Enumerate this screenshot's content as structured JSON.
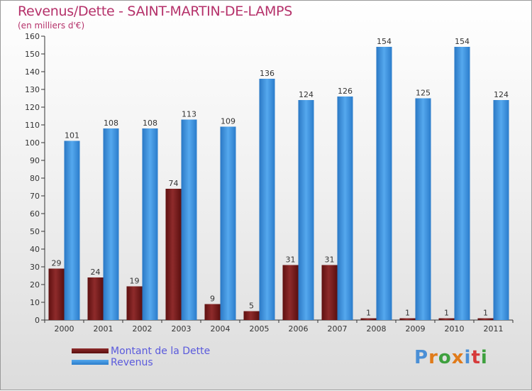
{
  "header": {
    "title": "Revenus/Dette - SAINT-MARTIN-DE-LAMPS",
    "subtitle": "(en milliers d'€)"
  },
  "legend": {
    "dette_label": "Montant de la Dette",
    "revenus_label": "Revenus"
  },
  "logo": {
    "text": "Proxiti"
  },
  "colors": {
    "dette": "#7a1a1a",
    "revenus": "#3a8fdc",
    "title": "#b5316a"
  },
  "chart_data": {
    "type": "bar",
    "title": "Revenus/Dette - SAINT-MARTIN-DE-LAMPS",
    "ylabel": "(en milliers d'€)",
    "xlabel": "",
    "categories": [
      "2000",
      "2001",
      "2002",
      "2003",
      "2004",
      "2005",
      "2006",
      "2007",
      "2008",
      "2009",
      "2010",
      "2011"
    ],
    "series": [
      {
        "name": "Montant de la Dette",
        "values": [
          29,
          24,
          19,
          74,
          9,
          5,
          31,
          31,
          1,
          1,
          1,
          1
        ]
      },
      {
        "name": "Revenus",
        "values": [
          101,
          108,
          108,
          113,
          109,
          136,
          124,
          126,
          154,
          125,
          154,
          124
        ]
      }
    ],
    "ylim": [
      0,
      160
    ],
    "ytick_step": 10,
    "grid": false,
    "legend_position": "bottom-left"
  }
}
